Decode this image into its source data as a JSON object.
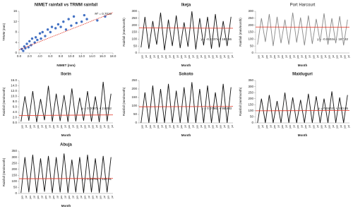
{
  "chart_data": [
    {
      "type": "scatter",
      "title": "NIMET rainfall vs TRMM rainfall",
      "x_label": "NIMET (mm)",
      "y_label": "TRMM (mm)",
      "annotation": "R² = 0.7019",
      "color": "#4472c4",
      "x": [
        0.5,
        0.8,
        1,
        1.2,
        1.5,
        1.8,
        2,
        2.3,
        2.5,
        3,
        3.2,
        3.5,
        4,
        4.2,
        4.5,
        5,
        5.5,
        6,
        6.3,
        7,
        7.5,
        8,
        8.5,
        9,
        9.5,
        10,
        10.5,
        11,
        12,
        12.5,
        13,
        15,
        16.5
      ],
      "y": [
        1.5,
        0.8,
        2.5,
        1.8,
        3.5,
        2.2,
        4.5,
        3,
        5.5,
        4,
        6,
        5,
        7.5,
        5.5,
        8,
        6.5,
        9,
        8,
        10,
        9.5,
        11,
        10,
        12,
        9,
        13,
        10.5,
        14,
        11.5,
        12,
        14.5,
        13,
        12.5,
        14
      ],
      "xlim": [
        0,
        18
      ],
      "ylim": [
        0,
        16
      ],
      "xticks": [
        {
          "value": 0,
          "label": "0.0"
        },
        {
          "value": 2,
          "label": "2.0"
        },
        {
          "value": 4,
          "label": "4.0"
        },
        {
          "value": 6,
          "label": "6.0"
        },
        {
          "value": 8,
          "label": "8.0"
        },
        {
          "value": 10,
          "label": "10.0"
        },
        {
          "value": 12,
          "label": "12.0"
        },
        {
          "value": 14,
          "label": "14.0"
        },
        {
          "value": 16,
          "label": "16.0"
        },
        {
          "value": 18,
          "label": "18.0"
        }
      ],
      "yticks": [
        0,
        4,
        8,
        12,
        16
      ],
      "trendline": {
        "color": "#e03020",
        "values": [
          1.2,
          15.5
        ]
      }
    },
    {
      "type": "line",
      "title": "Ikeja",
      "x_label": "Month",
      "y_label": "Rainfall (mm/month)",
      "annotation": "y = -0.1137x + 182.66",
      "color": "#111111",
      "categories": [
        "jan",
        "jul",
        "jan",
        "jul",
        "jan",
        "jul",
        "jan",
        "jul",
        "jan",
        "jul",
        "jan",
        "jul",
        "jan",
        "jul",
        "jan",
        "jul",
        "jan",
        "jul",
        "jan",
        "jul",
        "jan",
        "jul",
        "jan",
        "jul"
      ],
      "values": [
        40,
        260,
        30,
        230,
        60,
        290,
        20,
        240,
        50,
        270,
        35,
        220,
        45,
        300,
        25,
        250,
        55,
        260,
        30,
        280,
        40,
        230,
        50,
        260
      ],
      "ylim": [
        0,
        300
      ],
      "yticks": [
        0,
        50,
        100,
        150,
        200,
        250,
        300
      ],
      "trendline": {
        "color": "#e03020",
        "values": [
          180,
          178
        ]
      }
    },
    {
      "type": "line",
      "title": "Port Harcourt",
      "x_label": "Month",
      "y_label": "Rainfall (mm/month)",
      "annotation": "y = -0.0802x + 187.32",
      "color": "#888888",
      "categories": [
        "jan",
        "jul",
        "jan",
        "jul",
        "jan",
        "jul",
        "jan",
        "jul",
        "jan",
        "jul",
        "jan",
        "jul",
        "jan",
        "jul",
        "jan",
        "jul",
        "jan",
        "jul",
        "jan",
        "jul",
        "jan",
        "jul",
        "jan",
        "jul"
      ],
      "values": [
        60,
        250,
        80,
        280,
        50,
        260,
        70,
        240,
        60,
        290,
        75,
        255,
        55,
        270,
        65,
        245,
        80,
        285,
        60,
        250,
        70,
        265,
        55,
        240
      ],
      "ylim": [
        0,
        300
      ],
      "yticks": [
        0,
        50,
        100,
        150,
        200,
        250,
        300
      ],
      "trendline": {
        "color": "#e03020",
        "values": [
          187,
          185
        ]
      }
    },
    {
      "type": "line",
      "title": "Ilorin",
      "x_label": "Month",
      "y_label": "Rainfall (mm/month)",
      "annotation": "y = 0.0087x + 2.8052",
      "color": "#111111",
      "categories": [
        "jan",
        "jul",
        "jan",
        "jul",
        "jan",
        "jul",
        "jan",
        "jul",
        "jan",
        "jul",
        "jan",
        "jul",
        "jan",
        "jul",
        "jan",
        "jul",
        "jan",
        "jul",
        "jan",
        "jul",
        "jan",
        "jul",
        "jan",
        "jul"
      ],
      "values": [
        0.5,
        10,
        0.8,
        12,
        0.3,
        9,
        1,
        14,
        0.5,
        11,
        0.7,
        10.5,
        0.4,
        13,
        0.6,
        9.5,
        0.8,
        12,
        0.5,
        10,
        0.3,
        15.5,
        0.6,
        11
      ],
      "ylim": [
        0,
        16
      ],
      "yticks": [
        {
          "value": 0,
          "label": "0.0"
        },
        {
          "value": 2,
          "label": "2.0"
        },
        {
          "value": 4,
          "label": "4.0"
        },
        {
          "value": 6,
          "label": "6.0"
        },
        {
          "value": 8,
          "label": "8.0"
        },
        {
          "value": 10,
          "label": "10.0"
        },
        {
          "value": 12,
          "label": "12.0"
        },
        {
          "value": 14,
          "label": "14.0"
        },
        {
          "value": 16,
          "label": "16.0"
        }
      ],
      "trendline": {
        "color": "#e03020",
        "values": [
          2.8,
          3.0
        ]
      }
    },
    {
      "type": "line",
      "title": "Sokoto",
      "x_label": "Month",
      "y_label": "Rainfall (mm/month)",
      "annotation": "y = 0.0796x + 95.893",
      "color": "#111111",
      "categories": [
        "jan",
        "jul",
        "jan",
        "jul",
        "jan",
        "jul",
        "jan",
        "jul",
        "jan",
        "jul",
        "jan",
        "jul",
        "jan",
        "jul",
        "jan",
        "jul",
        "jan",
        "jul",
        "jan",
        "jul",
        "jan",
        "jul",
        "jan",
        "jul"
      ],
      "values": [
        0,
        180,
        0,
        220,
        0,
        200,
        0,
        230,
        0,
        190,
        0,
        210,
        0,
        240,
        0,
        200,
        0,
        220,
        0,
        180,
        0,
        230,
        0,
        210
      ],
      "ylim": [
        0,
        250
      ],
      "yticks": [
        0,
        50,
        100,
        150,
        200,
        250
      ],
      "trendline": {
        "color": "#e03020",
        "values": [
          95,
          97
        ]
      }
    },
    {
      "type": "line",
      "title": "Maiduguri",
      "x_label": "Month",
      "y_label": "Rainfall (mm/month)",
      "annotation": "y = 0.0402x + 100.05",
      "color": "#111111",
      "categories": [
        "jan",
        "jul",
        "jan",
        "jul",
        "jan",
        "jul",
        "jan",
        "jul",
        "jan",
        "jul",
        "jan",
        "jul",
        "jan",
        "jul",
        "jan",
        "jul",
        "jan",
        "jul",
        "jan",
        "jul",
        "jan",
        "jul",
        "jan",
        "jul"
      ],
      "values": [
        0,
        200,
        0,
        230,
        0,
        180,
        0,
        250,
        0,
        210,
        0,
        190,
        0,
        240,
        0,
        220,
        0,
        200,
        0,
        260,
        0,
        210,
        0,
        230
      ],
      "ylim": [
        0,
        350
      ],
      "yticks": [
        0,
        50,
        100,
        150,
        200,
        250,
        300,
        350
      ],
      "trendline": {
        "color": "#e03020",
        "values": [
          100,
          102
        ]
      }
    },
    {
      "type": "line",
      "title": "Abuja",
      "x_label": "Month",
      "y_label": "Rainfall (mm/month)",
      "annotation": "y = 0.0576x + 122.51",
      "color": "#111111",
      "categories": [
        "jan",
        "jul",
        "jan",
        "jul",
        "jan",
        "jul",
        "jan",
        "jul",
        "jan",
        "jul",
        "jan",
        "jul",
        "jan",
        "jul",
        "jan",
        "jul",
        "jan",
        "jul",
        "jan",
        "jul",
        "jan",
        "jul",
        "jan",
        "jul"
      ],
      "values": [
        5,
        300,
        10,
        320,
        5,
        290,
        15,
        310,
        5,
        300,
        10,
        330,
        5,
        280,
        10,
        300,
        5,
        320,
        10,
        290,
        5,
        310,
        10,
        300
      ],
      "ylim": [
        0,
        350
      ],
      "yticks": [
        0,
        50,
        100,
        150,
        200,
        250,
        300,
        350
      ],
      "trendline": {
        "color": "#e03020",
        "values": [
          122,
          124
        ]
      }
    }
  ]
}
